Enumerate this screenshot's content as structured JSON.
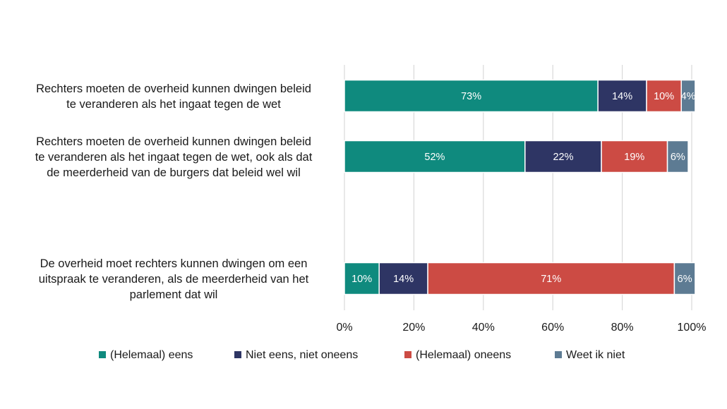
{
  "chart_data": {
    "type": "bar",
    "orientation": "horizontal",
    "stacked": true,
    "title": "",
    "xlabel": "",
    "ylabel": "",
    "xlim": [
      0,
      100
    ],
    "x_ticks": [
      "0%",
      "20%",
      "40%",
      "60%",
      "80%",
      "100%"
    ],
    "grid": true,
    "legend_position": "bottom",
    "categories": [
      [
        "Rechters moeten de overheid kunnen dwingen beleid",
        "te veranderen als het ingaat tegen de wet"
      ],
      [
        "Rechters moeten de overheid kunnen dwingen beleid",
        "te veranderen als het ingaat tegen de wet, ook als dat",
        "de meerderheid van de burgers dat beleid wel wil"
      ],
      [
        "De overheid moet rechters kunnen dwingen om een",
        "uitspraak te veranderen, als de meerderheid van het",
        "parlement dat wil"
      ]
    ],
    "series": [
      {
        "name": "(Helemaal) eens",
        "color": "#0f8a7e",
        "values": [
          73,
          52,
          10
        ],
        "labels": [
          "73%",
          "52%",
          "10%"
        ]
      },
      {
        "name": "Niet eens, niet oneens",
        "color": "#2e3564",
        "values": [
          14,
          22,
          14
        ],
        "labels": [
          "14%",
          "22%",
          "14%"
        ]
      },
      {
        "name": "(Helemaal) oneens",
        "color": "#cc4b44",
        "values": [
          10,
          19,
          71
        ],
        "labels": [
          "10%",
          "19%",
          "71%"
        ]
      },
      {
        "name": "Weet ik niet",
        "color": "#5d7b93",
        "values": [
          4,
          6,
          6
        ],
        "labels": [
          "4%",
          "6%",
          "6%"
        ]
      }
    ]
  }
}
